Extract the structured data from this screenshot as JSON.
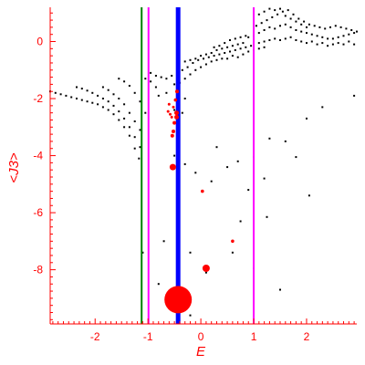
{
  "chart_data": {
    "type": "scatter",
    "xlabel": "E",
    "ylabel": "<J3>",
    "xlim": [
      -2.85,
      2.95
    ],
    "ylim": [
      -9.9,
      1.2
    ],
    "x_ticks": [
      -2,
      -1,
      0,
      1,
      2
    ],
    "x_tick_labels": [
      "-2",
      "-1",
      "0",
      "1",
      "2"
    ],
    "y_ticks": [
      -8,
      -6,
      -4,
      -2,
      0
    ],
    "y_tick_labels": [
      "-8",
      "-6",
      "-4",
      "-2",
      "0"
    ],
    "grid": false,
    "axis_color": "#ff0000",
    "vertical_lines": [
      {
        "x": -1.12,
        "color": "#008000",
        "width": 2
      },
      {
        "x": -0.99,
        "color": "#ff00ff",
        "width": 2
      },
      {
        "x": -0.43,
        "color": "#0000ff",
        "width": 5
      },
      {
        "x": 1.0,
        "color": "#ff00ff",
        "width": 2
      }
    ],
    "black_points": [
      [
        -2.85,
        -1.75
      ],
      [
        -2.75,
        -1.8
      ],
      [
        -2.65,
        -1.85
      ],
      [
        -2.55,
        -1.9
      ],
      [
        -2.45,
        -1.95
      ],
      [
        -2.35,
        -2.0
      ],
      [
        -2.25,
        -2.05
      ],
      [
        -2.15,
        -2.1
      ],
      [
        -2.05,
        -2.15
      ],
      [
        -1.95,
        -2.2
      ],
      [
        -1.85,
        -2.3
      ],
      [
        -1.75,
        -2.4
      ],
      [
        -1.65,
        -2.55
      ],
      [
        -1.55,
        -2.75
      ],
      [
        -1.45,
        -3.0
      ],
      [
        -1.35,
        -3.3
      ],
      [
        -1.25,
        -3.75
      ],
      [
        -1.17,
        -4.1
      ],
      [
        -2.35,
        -1.6
      ],
      [
        -2.25,
        -1.65
      ],
      [
        -2.15,
        -1.72
      ],
      [
        -2.05,
        -1.8
      ],
      [
        -1.95,
        -1.9
      ],
      [
        -1.85,
        -2.0
      ],
      [
        -1.75,
        -2.1
      ],
      [
        -1.65,
        -2.25
      ],
      [
        -1.55,
        -2.45
      ],
      [
        -1.45,
        -2.7
      ],
      [
        -1.35,
        -3.0
      ],
      [
        -1.25,
        -3.35
      ],
      [
        -1.15,
        -3.7
      ],
      [
        -1.85,
        -1.6
      ],
      [
        -1.75,
        -1.7
      ],
      [
        -1.65,
        -1.85
      ],
      [
        -1.55,
        -2.0
      ],
      [
        -1.45,
        -2.2
      ],
      [
        -1.35,
        -2.5
      ],
      [
        -1.25,
        -2.8
      ],
      [
        -1.15,
        -3.1
      ],
      [
        -1.55,
        -1.3
      ],
      [
        -1.45,
        -1.4
      ],
      [
        -1.35,
        -1.55
      ],
      [
        -1.25,
        -1.8
      ],
      [
        -1.15,
        -2.1
      ],
      [
        -1.05,
        -2.5
      ],
      [
        -1.05,
        -1.3
      ],
      [
        -0.95,
        -1.4
      ],
      [
        -0.85,
        -1.6
      ],
      [
        -0.8,
        -1.9
      ],
      [
        -0.95,
        -1.1
      ],
      [
        -0.85,
        -1.2
      ],
      [
        -0.75,
        -1.25
      ],
      [
        -0.65,
        -1.3
      ],
      [
        -0.55,
        -1.2
      ],
      [
        -0.45,
        -1.1
      ],
      [
        -0.35,
        -1.0
      ],
      [
        -0.25,
        -0.9
      ],
      [
        -0.15,
        -0.75
      ],
      [
        -0.05,
        -0.65
      ],
      [
        0.05,
        -0.6
      ],
      [
        0.15,
        -0.55
      ],
      [
        0.25,
        -0.5
      ],
      [
        0.35,
        -0.45
      ],
      [
        0.45,
        -0.4
      ],
      [
        0.55,
        -0.35
      ],
      [
        0.65,
        -0.3
      ],
      [
        0.75,
        -0.25
      ],
      [
        0.85,
        -0.2
      ],
      [
        0.95,
        -0.15
      ],
      [
        -0.5,
        -1.5
      ],
      [
        -0.4,
        -1.45
      ],
      [
        -0.3,
        -1.3
      ],
      [
        -0.2,
        -1.15
      ],
      [
        -0.1,
        -1.0
      ],
      [
        0.0,
        -0.9
      ],
      [
        0.1,
        -0.8
      ],
      [
        0.2,
        -0.7
      ],
      [
        0.3,
        -0.65
      ],
      [
        0.4,
        -0.6
      ],
      [
        -0.3,
        -0.7
      ],
      [
        -0.2,
        -0.65
      ],
      [
        -0.1,
        -0.6
      ],
      [
        0.0,
        -0.5
      ],
      [
        0.1,
        -0.45
      ],
      [
        0.2,
        -0.4
      ],
      [
        0.3,
        -0.3
      ],
      [
        0.4,
        -0.25
      ],
      [
        0.5,
        -0.2
      ],
      [
        0.6,
        -0.15
      ],
      [
        0.7,
        -0.1
      ],
      [
        0.8,
        -0.05
      ],
      [
        0.5,
        -0.6
      ],
      [
        0.6,
        -0.5
      ],
      [
        0.7,
        -0.55
      ],
      [
        0.8,
        -0.45
      ],
      [
        0.9,
        -0.35
      ],
      [
        1.0,
        -0.3
      ],
      [
        1.1,
        -0.25
      ],
      [
        1.2,
        -0.2
      ],
      [
        0.9,
        0.15
      ],
      [
        1.0,
        0.2
      ],
      [
        1.1,
        0.3
      ],
      [
        1.2,
        0.4
      ],
      [
        1.3,
        0.5
      ],
      [
        1.4,
        0.45
      ],
      [
        1.5,
        0.55
      ],
      [
        1.6,
        0.6
      ],
      [
        1.7,
        0.5
      ],
      [
        1.8,
        0.4
      ],
      [
        1.9,
        0.35
      ],
      [
        2.0,
        0.3
      ],
      [
        2.1,
        0.25
      ],
      [
        2.2,
        0.2
      ],
      [
        2.3,
        0.15
      ],
      [
        2.4,
        0.1
      ],
      [
        2.5,
        0.1
      ],
      [
        2.6,
        0.15
      ],
      [
        2.7,
        0.2
      ],
      [
        2.8,
        0.25
      ],
      [
        2.9,
        0.3
      ],
      [
        1.0,
        -0.1
      ],
      [
        1.1,
        -0.05
      ],
      [
        1.2,
        0.0
      ],
      [
        1.3,
        0.05
      ],
      [
        1.4,
        0.1
      ],
      [
        1.5,
        0.05
      ],
      [
        1.6,
        0.1
      ],
      [
        1.7,
        0.15
      ],
      [
        1.8,
        0.05
      ],
      [
        1.9,
        0.0
      ],
      [
        2.0,
        -0.05
      ],
      [
        2.1,
        0.0
      ],
      [
        2.2,
        -0.1
      ],
      [
        2.3,
        -0.05
      ],
      [
        2.4,
        -0.15
      ],
      [
        2.5,
        -0.1
      ],
      [
        2.6,
        -0.05
      ],
      [
        2.7,
        -0.1
      ],
      [
        2.8,
        0.0
      ],
      [
        2.9,
        -0.1
      ],
      [
        1.05,
        0.55
      ],
      [
        1.15,
        0.65
      ],
      [
        1.25,
        0.75
      ],
      [
        1.35,
        0.85
      ],
      [
        1.45,
        0.95
      ],
      [
        1.55,
        1.05
      ],
      [
        1.65,
        1.1
      ],
      [
        1.75,
        0.95
      ],
      [
        1.85,
        0.8
      ],
      [
        1.95,
        0.7
      ],
      [
        2.05,
        0.6
      ],
      [
        2.15,
        0.55
      ],
      [
        2.25,
        0.5
      ],
      [
        2.35,
        0.45
      ],
      [
        2.45,
        0.5
      ],
      [
        2.55,
        0.55
      ],
      [
        2.65,
        0.5
      ],
      [
        2.75,
        0.45
      ],
      [
        2.85,
        0.4
      ],
      [
        2.95,
        0.35
      ],
      [
        1.1,
        0.95
      ],
      [
        1.2,
        1.05
      ],
      [
        1.3,
        1.15
      ],
      [
        1.4,
        1.1
      ],
      [
        1.5,
        1.15
      ],
      [
        1.6,
        0.9
      ],
      [
        1.7,
        0.8
      ],
      [
        1.8,
        0.7
      ],
      [
        1.9,
        0.6
      ],
      [
        2.0,
        0.5
      ],
      [
        0.55,
        0.05
      ],
      [
        0.65,
        0.1
      ],
      [
        0.75,
        0.15
      ],
      [
        0.85,
        0.2
      ],
      [
        0.45,
        -0.05
      ],
      [
        0.35,
        -0.15
      ],
      [
        0.25,
        -0.2
      ],
      [
        -0.65,
        -1.8
      ],
      [
        -0.5,
        -2.4
      ],
      [
        -0.3,
        -2.0
      ],
      [
        -0.35,
        -2.5
      ],
      [
        -0.45,
        -1.7
      ],
      [
        -0.5,
        -4.0
      ],
      [
        -0.3,
        -4.3
      ],
      [
        -0.1,
        -4.6
      ],
      [
        0.2,
        -4.9
      ],
      [
        0.5,
        -4.4
      ],
      [
        0.7,
        -4.2
      ],
      [
        1.0,
        -4.05
      ],
      [
        0.3,
        -3.7
      ],
      [
        0.9,
        -5.2
      ],
      [
        1.2,
        -4.8
      ],
      [
        1.3,
        -3.4
      ],
      [
        1.6,
        -3.5
      ],
      [
        1.8,
        -4.05
      ],
      [
        2.0,
        -2.7
      ],
      [
        2.3,
        -2.3
      ],
      [
        2.9,
        -1.9
      ],
      [
        1.25,
        -6.15
      ],
      [
        2.05,
        -5.4
      ],
      [
        0.75,
        -6.3
      ],
      [
        -0.7,
        -7.0
      ],
      [
        -0.2,
        -7.4
      ],
      [
        0.6,
        -7.4
      ],
      [
        1.0,
        -7.95
      ],
      [
        1.5,
        -8.7
      ],
      [
        -0.45,
        -8.2
      ],
      [
        0.1,
        -8.1
      ],
      [
        -0.8,
        -8.5
      ],
      [
        -1.1,
        -7.4
      ],
      [
        -0.2,
        -9.6
      ]
    ],
    "red_points": [
      {
        "x": -0.62,
        "y": -2.45,
        "r": 1.5
      },
      {
        "x": -0.58,
        "y": -2.55,
        "r": 1.5
      },
      {
        "x": -0.55,
        "y": -2.65,
        "r": 1.5
      },
      {
        "x": -0.6,
        "y": -2.2,
        "r": 1.5
      },
      {
        "x": -0.52,
        "y": -2.3,
        "r": 1.5
      },
      {
        "x": -0.48,
        "y": -2.05,
        "r": 1.8
      },
      {
        "x": -0.45,
        "y": -1.75,
        "r": 2
      },
      {
        "x": -0.46,
        "y": -2.5,
        "r": 2.5
      },
      {
        "x": -0.46,
        "y": -2.65,
        "r": 2.5
      },
      {
        "x": -0.5,
        "y": -2.85,
        "r": 2
      },
      {
        "x": -0.52,
        "y": -3.15,
        "r": 2
      },
      {
        "x": -0.54,
        "y": -3.3,
        "r": 2
      },
      {
        "x": -0.53,
        "y": -4.4,
        "r": 3.5
      },
      {
        "x": 0.03,
        "y": -5.25,
        "r": 1.8
      },
      {
        "x": 0.6,
        "y": -7.0,
        "r": 1.8
      },
      {
        "x": 0.1,
        "y": -7.95,
        "r": 4
      },
      {
        "x": -0.43,
        "y": -9.05,
        "r": 15
      }
    ]
  }
}
